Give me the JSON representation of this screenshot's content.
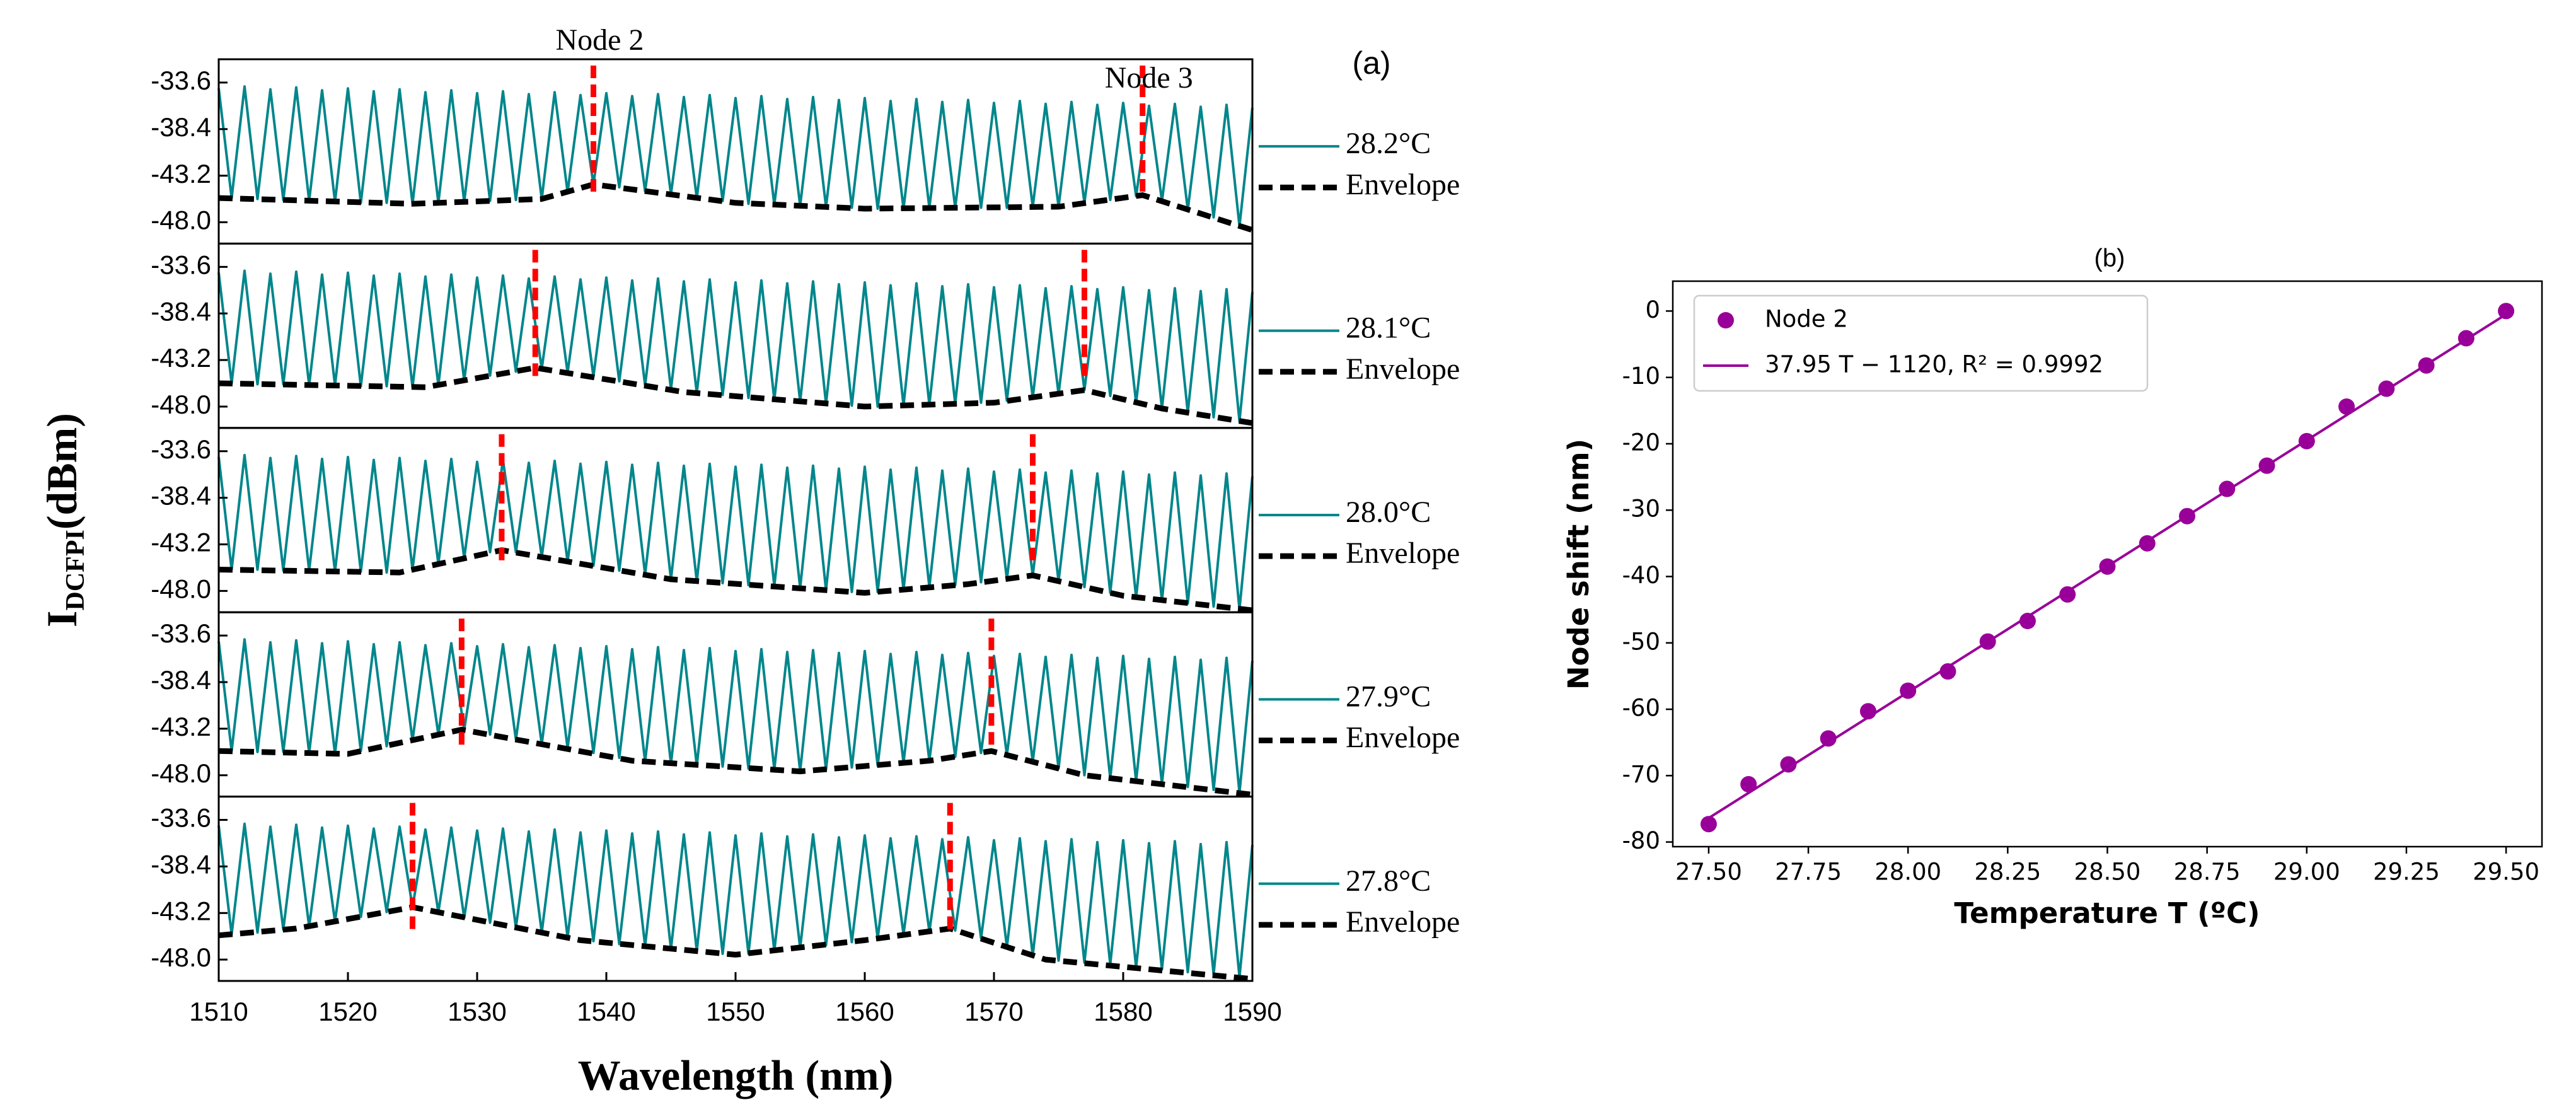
{
  "chart_data": [
    {
      "type": "line",
      "title": "(a)",
      "xlabel": "Wavelength (nm)",
      "ylabel": "I",
      "ylabel_sub": "DCFPI",
      "ylabel_unit": "(dBm)",
      "annotations": [
        "Node 2",
        "Node 3"
      ],
      "xlim": [
        1510,
        1590
      ],
      "xticks": [
        1510,
        1520,
        1530,
        1540,
        1550,
        1560,
        1570,
        1580,
        1590
      ],
      "ylim": [
        -50.2,
        -31.2
      ],
      "yticks": [
        -33.6,
        -38.4,
        -43.2,
        {
          "value": -48,
          "label": "-48.0"
        }
      ],
      "x": [
        1510,
        1511,
        1512,
        1513,
        1514,
        1515,
        1516,
        1517,
        1518,
        1519,
        1520,
        1521,
        1522,
        1523,
        1524,
        1525,
        1526,
        1527,
        1528,
        1529,
        1530,
        1531,
        1532,
        1533,
        1534,
        1535,
        1536,
        1537,
        1538,
        1539,
        1540,
        1541,
        1542,
        1543,
        1544,
        1545,
        1546,
        1547,
        1548,
        1549,
        1550,
        1551,
        1552,
        1553,
        1554,
        1555,
        1556,
        1557,
        1558,
        1559,
        1560,
        1561,
        1562,
        1563,
        1564,
        1565,
        1566,
        1567,
        1568,
        1569,
        1570,
        1571,
        1572,
        1573,
        1574,
        1575,
        1576,
        1577,
        1578,
        1579,
        1580,
        1581,
        1582,
        1583,
        1584,
        1585,
        1586,
        1587,
        1588,
        1589,
        1590
      ],
      "node_color": "#ff0000",
      "panels": [
        {
          "nodes": [
            1539,
            1581.5
          ],
          "series": [
            {
              "name": "28.2°C",
              "color": "#00868b",
              "values": [
                -34.2,
                -45.5,
                -34,
                -45.6,
                -34.3,
                -45.7,
                -34.1,
                -45.8,
                -34.4,
                -45.9,
                -34.2,
                -46,
                -34.5,
                -46,
                -34.3,
                -46.1,
                -34.6,
                -46,
                -34.4,
                -45.9,
                -34.7,
                -45.8,
                -34.5,
                -45.7,
                -34.8,
                -45.6,
                -34.6,
                -44.9,
                -34.9,
                -44.1,
                -34.7,
                -44.4,
                -35,
                -44.8,
                -34.8,
                -45.1,
                -35.1,
                -45.5,
                -34.9,
                -45.8,
                -35.2,
                -46.1,
                -35,
                -46.2,
                -35.3,
                -46.3,
                -35.1,
                -46.4,
                -35.4,
                -46.5,
                -35.2,
                -46.6,
                -35.5,
                -46.6,
                -35.3,
                -46.5,
                -35.6,
                -46.5,
                -35.4,
                -46.5,
                -35.7,
                -46.5,
                -35.5,
                -46.4,
                -35.8,
                -46.4,
                -35.6,
                -46,
                -35.9,
                -45.7,
                -35.7,
                -45.3,
                -36,
                -45.8,
                -35.8,
                -46.7,
                -36.1,
                -47.5,
                -35.9,
                -48.4,
                -36.2
              ]
            },
            {
              "name": "Envelope",
              "color": "#000000",
              "dashed": true,
              "x": [
                1510,
                1525,
                1535,
                1539,
                1550,
                1560,
                1575,
                1581.5,
                1590
              ],
              "values": [
                -45.5,
                -46.1,
                -45.6,
                -44.1,
                -46,
                -46.6,
                -46.4,
                -45.2,
                -48.8
              ]
            }
          ]
        },
        {
          "nodes": [
            1534.5,
            1577
          ],
          "series": [
            {
              "name": "28.1°C",
              "color": "#00868b",
              "values": [
                -34.2,
                -45.6,
                -34,
                -45.7,
                -34.3,
                -45.7,
                -34.1,
                -45.8,
                -34.4,
                -45.8,
                -34.2,
                -45.9,
                -34.5,
                -45.9,
                -34.3,
                -46,
                -34.6,
                -45.8,
                -34.4,
                -45.3,
                -34.7,
                -44.8,
                -34.5,
                -44.4,
                -34.8,
                -44.1,
                -34.6,
                -44.5,
                -34.9,
                -44.9,
                -34.7,
                -45.4,
                -35,
                -45.8,
                -34.8,
                -46.2,
                -35.1,
                -46.6,
                -34.9,
                -46.8,
                -35.2,
                -47.1,
                -35,
                -47.3,
                -35.3,
                -47.5,
                -35.1,
                -47.7,
                -35.4,
                -47.9,
                -35.2,
                -48,
                -35.5,
                -47.9,
                -35.3,
                -47.8,
                -35.6,
                -47.7,
                -35.4,
                -47.6,
                -35.7,
                -47.4,
                -35.5,
                -47.1,
                -35.8,
                -46.7,
                -35.6,
                -46.3,
                -35.9,
                -46.9,
                -35.7,
                -47.6,
                -36,
                -48.2,
                -35.8,
                -48.6,
                -36.1,
                -49.1,
                -35.9,
                -49.5,
                -36.2
              ]
            },
            {
              "name": "Envelope",
              "color": "#000000",
              "dashed": true,
              "x": [
                1510,
                1526,
                1534.5,
                1546,
                1560,
                1570,
                1577,
                1583,
                1590
              ],
              "values": [
                -45.6,
                -46,
                -44,
                -46.5,
                -48,
                -47.6,
                -46.3,
                -48.2,
                -49.7
              ]
            }
          ]
        },
        {
          "nodes": [
            1531.9,
            1573
          ],
          "series": [
            {
              "name": "28.0°C",
              "color": "#00868b",
              "values": [
                -34.2,
                -45.8,
                -34,
                -45.8,
                -34.3,
                -45.9,
                -34.1,
                -45.9,
                -34.4,
                -46,
                -34.2,
                -46,
                -34.5,
                -46.1,
                -34.3,
                -45.8,
                -34.6,
                -45.2,
                -34.4,
                -44.6,
                -34.7,
                -44,
                -34.5,
                -44,
                -34.8,
                -44.5,
                -34.6,
                -45,
                -34.9,
                -45.4,
                -34.7,
                -45.9,
                -35,
                -46.3,
                -34.8,
                -46.8,
                -35.1,
                -47,
                -34.9,
                -47.2,
                -35.2,
                -47.4,
                -35,
                -47.5,
                -35.3,
                -47.7,
                -35.1,
                -47.9,
                -35.4,
                -48.1,
                -35.2,
                -48.1,
                -35.5,
                -47.9,
                -35.3,
                -47.6,
                -35.6,
                -47.4,
                -35.4,
                -47.1,
                -35.7,
                -46.8,
                -35.5,
                -46.4,
                -35.8,
                -47,
                -35.6,
                -47.6,
                -35.9,
                -48.2,
                -35.7,
                -48.7,
                -36,
                -49,
                -35.8,
                -49.3,
                -36.1,
                -49.6,
                -35.9,
                -49.9,
                -36.2
              ]
            },
            {
              "name": "Envelope",
              "color": "#000000",
              "dashed": true,
              "x": [
                1510,
                1524,
                1531.9,
                1545,
                1560,
                1568,
                1573,
                1580,
                1590
              ],
              "values": [
                -45.8,
                -46.1,
                -43.8,
                -46.8,
                -48.2,
                -47.3,
                -46.4,
                -48.5,
                -50
              ]
            }
          ]
        },
        {
          "nodes": [
            1528.8,
            1569.8
          ],
          "series": [
            {
              "name": "27.9°C",
              "color": "#00868b",
              "values": [
                -34.2,
                -45.5,
                -34,
                -45.6,
                -34.3,
                -45.6,
                -34.1,
                -45.7,
                -34.4,
                -45.8,
                -34.2,
                -45.5,
                -34.5,
                -45,
                -34.3,
                -44.4,
                -34.6,
                -43.8,
                -34.4,
                -43.3,
                -34.7,
                -43.8,
                -34.5,
                -44.3,
                -34.8,
                -44.8,
                -34.6,
                -45.2,
                -34.9,
                -45.7,
                -34.7,
                -46.2,
                -35,
                -46.6,
                -34.8,
                -46.8,
                -35.1,
                -47,
                -34.9,
                -47.1,
                -35.2,
                -47.3,
                -35,
                -47.4,
                -35.3,
                -47.6,
                -35.1,
                -47.4,
                -35.4,
                -47.2,
                -35.2,
                -47,
                -35.5,
                -46.7,
                -35.3,
                -46.5,
                -35.6,
                -46.1,
                -35.4,
                -45.7,
                -35.7,
                -45.9,
                -35.5,
                -46.6,
                -35.8,
                -47.3,
                -35.6,
                -48,
                -35.9,
                -48.3,
                -35.7,
                -48.6,
                -36,
                -48.9,
                -35.8,
                -49.2,
                -36.1,
                -49.5,
                -35.9,
                -49.8,
                -36.2
              ]
            },
            {
              "name": "Envelope",
              "color": "#000000",
              "dashed": true,
              "x": [
                1510,
                1520,
                1528.8,
                1542,
                1555,
                1565,
                1569.8,
                1577,
                1590
              ],
              "values": [
                -45.5,
                -45.8,
                -43.3,
                -46.5,
                -47.6,
                -46.5,
                -45.5,
                -48,
                -50
              ]
            }
          ]
        },
        {
          "nodes": [
            1525,
            1566.6
          ],
          "series": [
            {
              "name": "27.8°C",
              "color": "#00868b",
              "values": [
                -34.2,
                -45.4,
                -34,
                -45.2,
                -34.3,
                -44.9,
                -34.1,
                -44.6,
                -34.4,
                -44.1,
                -34.2,
                -43.6,
                -34.5,
                -43.1,
                -34.3,
                -42.6,
                -34.6,
                -43.1,
                -34.4,
                -43.7,
                -34.7,
                -44.2,
                -34.5,
                -44.7,
                -34.8,
                -45.2,
                -34.6,
                -45.7,
                -34.9,
                -46.1,
                -34.7,
                -46.4,
                -35,
                -46.6,
                -34.8,
                -46.9,
                -35.1,
                -47.1,
                -34.9,
                -47.4,
                -35.2,
                -47.4,
                -35,
                -47.1,
                -35.3,
                -46.8,
                -35.1,
                -46.5,
                -35.4,
                -46.2,
                -35.2,
                -45.8,
                -35.5,
                -45.4,
                -35.3,
                -45.1,
                -35.6,
                -45,
                -35.4,
                -45.8,
                -35.7,
                -46.7,
                -35.5,
                -47.6,
                -35.8,
                -48.1,
                -35.6,
                -48.3,
                -35.9,
                -48.5,
                -35.7,
                -48.8,
                -36,
                -49,
                -35.8,
                -49.3,
                -36.1,
                -49.5,
                -35.9,
                -49.8,
                -36.2
              ]
            },
            {
              "name": "Envelope",
              "color": "#000000",
              "dashed": true,
              "x": [
                1510,
                1516,
                1525,
                1538,
                1550,
                1560,
                1566.6,
                1574,
                1590
              ],
              "values": [
                -45.5,
                -44.8,
                -42.6,
                -46,
                -47.5,
                -46,
                -44.8,
                -48,
                -50
              ]
            }
          ]
        }
      ]
    },
    {
      "type": "scatter",
      "title": "(b)",
      "xlabel": "Temperature T (ºC)",
      "ylabel": "Node shift (nm)",
      "xlim": [
        27.41,
        29.59
      ],
      "xticks": [
        {
          "value": 27.5,
          "label": "27.50"
        },
        {
          "value": 27.75,
          "label": "27.75"
        },
        {
          "value": 28,
          "label": "28.00"
        },
        {
          "value": 28.25,
          "label": "28.25"
        },
        {
          "value": 28.5,
          "label": "28.50"
        },
        {
          "value": 28.75,
          "label": "28.75"
        },
        {
          "value": 29,
          "label": "29.00"
        },
        {
          "value": 29.25,
          "label": "29.25"
        },
        {
          "value": 29.5,
          "label": "29.50"
        }
      ],
      "ylim": [
        -80.7,
        4.5
      ],
      "yticks": [
        0,
        -10,
        -20,
        -30,
        -40,
        -50,
        -60,
        -70,
        -80
      ],
      "legend": "upper left",
      "series": [
        {
          "name": "Node 2",
          "color": "#990099",
          "x": [
            27.5,
            27.6,
            27.7,
            27.8,
            27.9,
            28.0,
            28.1,
            28.2,
            28.3,
            28.4,
            28.5,
            28.6,
            28.7,
            28.8,
            28.9,
            29.0,
            29.1,
            29.2,
            29.3,
            29.4,
            29.5
          ],
          "values": [
            -77.3,
            -71.3,
            -68.3,
            -64.4,
            -60.3,
            -57.2,
            -54.3,
            -49.8,
            -46.7,
            -42.7,
            -38.5,
            -35,
            -30.9,
            -26.8,
            -23.3,
            -19.6,
            -14.4,
            -11.7,
            -8.2,
            -4.1,
            0
          ]
        },
        {
          "name": "37.95 T − 1120, R² = 0.9992",
          "color": "#990099",
          "fit": true,
          "x": [
            27.5,
            29.5
          ],
          "values": [
            -76.4,
            -0.5
          ]
        }
      ]
    }
  ]
}
